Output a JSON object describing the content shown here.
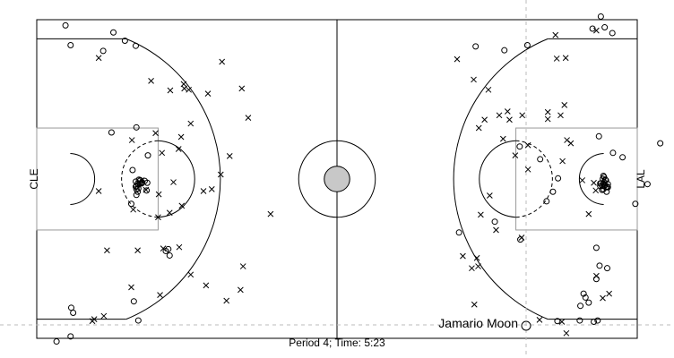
{
  "chart_data": {
    "type": "scatter",
    "subtitle": "Period 4; Time: 5:23",
    "teams": {
      "left": "CLE",
      "right": "LAL"
    },
    "highlight": {
      "player": "Jamario Moon"
    },
    "legend": {
      "made": "o",
      "missed": "x"
    },
    "series": [
      {
        "marker": "o",
        "points": [
          [
            4.5,
            49.1
          ],
          [
            10.4,
            45.1
          ],
          [
            15.5,
            45.9
          ],
          [
            13.8,
            46.7
          ],
          [
            12.0,
            48.0
          ],
          [
            5.3,
            46.0
          ],
          [
            11.7,
            32.3
          ],
          [
            17.4,
            28.7
          ],
          [
            15.6,
            22.5
          ],
          [
            15.5,
            23.8
          ],
          [
            15.8,
            24.3
          ],
          [
            16.0,
            24.9
          ],
          [
            15.8,
            23.0
          ],
          [
            16.4,
            24.3
          ],
          [
            16.2,
            24.8
          ],
          [
            15.5,
            24.6
          ],
          [
            15.6,
            23.9
          ],
          [
            16.1,
            24.3
          ],
          [
            16.9,
            24.7
          ],
          [
            16.2,
            24.8
          ],
          [
            15.0,
            26.4
          ],
          [
            16.5,
            24.5
          ],
          [
            17.2,
            23.2
          ],
          [
            15.9,
            23.5
          ],
          [
            14.8,
            21.1
          ],
          [
            16.4,
            24.4
          ],
          [
            15.6,
            23.4
          ],
          [
            17.3,
            24.4
          ],
          [
            15.9,
            24.1
          ],
          [
            20.6,
            14.0
          ],
          [
            20.8,
            13.0
          ],
          [
            20.2,
            13.7
          ],
          [
            15.6,
            33.1
          ],
          [
            15.9,
            2.8
          ],
          [
            15.2,
            5.8
          ],
          [
            5.4,
            4.8
          ],
          [
            5.3,
            0.3
          ],
          [
            3.1,
            -0.5
          ],
          [
            5.7,
            4.0
          ],
          [
            81.5,
            2.7
          ],
          [
            85.0,
            2.8
          ],
          [
            90.2,
            29.1
          ],
          [
            87.6,
            14.2
          ],
          [
            89.3,
            11.0
          ],
          [
            91.7,
            28.4
          ],
          [
            93.7,
            21.1
          ],
          [
            95.6,
            24.2
          ],
          [
            97.6,
            30.6
          ],
          [
            76.8,
            46.0
          ],
          [
            73.2,
            45.2
          ],
          [
            75.7,
            15.5
          ],
          [
            75.6,
            30.1
          ],
          [
            88.0,
            31.7
          ],
          [
            88.3,
            24.3
          ],
          [
            88.8,
            24.5
          ],
          [
            89.1,
            23.7
          ],
          [
            88.5,
            23.9
          ],
          [
            88.8,
            23.9
          ],
          [
            89.0,
            24.9
          ],
          [
            88.2,
            23.9
          ],
          [
            88.7,
            24.3
          ],
          [
            88.6,
            25.0
          ],
          [
            88.7,
            25.5
          ],
          [
            89.1,
            24.8
          ],
          [
            88.9,
            24.0
          ],
          [
            88.7,
            23.4
          ],
          [
            89.4,
            23.7
          ],
          [
            88.2,
            24.3
          ],
          [
            89.3,
            23.8
          ],
          [
            89.2,
            23.0
          ],
          [
            88.5,
            23.3
          ],
          [
            89.4,
            24.2
          ],
          [
            88.8,
            25.3
          ],
          [
            87.6,
            9.3
          ],
          [
            86.4,
            5.6
          ],
          [
            85.9,
            6.4
          ],
          [
            85.6,
            7.0
          ],
          [
            85.1,
            5.1
          ],
          [
            87.8,
            2.8
          ],
          [
            88.1,
            11.4
          ],
          [
            87.2,
            2.6
          ],
          [
            88.3,
            50.5
          ],
          [
            88.9,
            48.8
          ],
          [
            87.0,
            48.6
          ],
          [
            90.1,
            47.9
          ],
          [
            80.8,
            23.0
          ],
          [
            81.6,
            25.1
          ],
          [
            78.8,
            28.1
          ],
          [
            79.8,
            21.5
          ],
          [
            68.7,
            45.8
          ],
          [
            66.1,
            16.6
          ],
          [
            71.7,
            18.3
          ]
        ]
      },
      {
        "marker": "x",
        "points": [
          [
            9.7,
            44.0
          ],
          [
            17.9,
            40.4
          ],
          [
            20.9,
            38.9
          ],
          [
            23.1,
            39.2
          ],
          [
            23.8,
            39.0
          ],
          [
            29.0,
            43.4
          ],
          [
            23.0,
            39.9
          ],
          [
            26.8,
            38.4
          ],
          [
            32.1,
            39.2
          ],
          [
            30.2,
            28.6
          ],
          [
            33.1,
            34.6
          ],
          [
            36.6,
            19.5
          ],
          [
            15.1,
            20.2
          ],
          [
            19.6,
            29.1
          ],
          [
            22.6,
            31.6
          ],
          [
            24.1,
            33.7
          ],
          [
            22.2,
            29.7
          ],
          [
            18.6,
            32.2
          ],
          [
            14.9,
            31.1
          ],
          [
            21.4,
            24.5
          ],
          [
            16.4,
            24.8
          ],
          [
            19.0,
            19.0
          ],
          [
            17.1,
            23.3
          ],
          [
            19.1,
            22.6
          ],
          [
            22.7,
            20.8
          ],
          [
            26.1,
            23.1
          ],
          [
            28.8,
            25.7
          ],
          [
            27.4,
            23.4
          ],
          [
            22.3,
            14.3
          ],
          [
            20.8,
            19.7
          ],
          [
            11.0,
            13.8
          ],
          [
            15.8,
            13.8
          ],
          [
            19.8,
            14.1
          ],
          [
            19.3,
            6.8
          ],
          [
            24.1,
            10.0
          ],
          [
            26.5,
            8.3
          ],
          [
            29.7,
            5.9
          ],
          [
            31.9,
            7.6
          ],
          [
            32.3,
            11.3
          ],
          [
            14.8,
            8.0
          ],
          [
            9.7,
            23.1
          ],
          [
            10.5,
            3.5
          ],
          [
            9.0,
            3.0
          ],
          [
            8.7,
            2.7
          ],
          [
            81.2,
            47.6
          ],
          [
            87.6,
            48.3
          ],
          [
            82.8,
            44.0
          ],
          [
            81.4,
            43.9
          ],
          [
            82.6,
            36.6
          ],
          [
            80.0,
            34.4
          ],
          [
            82.0,
            35.0
          ],
          [
            83.6,
            30.6
          ],
          [
            83.0,
            31.1
          ],
          [
            87.2,
            24.4
          ],
          [
            85.4,
            24.8
          ],
          [
            87.5,
            23.2
          ],
          [
            86.4,
            19.5
          ],
          [
            80.0,
            35.5
          ],
          [
            82.3,
            27.8
          ],
          [
            76.0,
            35.0
          ],
          [
            70.7,
            39.0
          ],
          [
            72.4,
            35.0
          ],
          [
            73.7,
            35.6
          ],
          [
            74.0,
            34.3
          ],
          [
            69.2,
            33.0
          ],
          [
            70.9,
            22.4
          ],
          [
            69.5,
            19.4
          ],
          [
            71.9,
            17.0
          ],
          [
            68.9,
            12.6
          ],
          [
            69.1,
            11.3
          ],
          [
            68.1,
            11.0
          ],
          [
            66.7,
            12.9
          ],
          [
            65.8,
            43.8
          ],
          [
            68.4,
            40.6
          ],
          [
            75.9,
            15.8
          ],
          [
            70.1,
            34.3
          ],
          [
            73.0,
            31.3
          ],
          [
            76.9,
            30.3
          ],
          [
            74.9,
            28.7
          ],
          [
            76.9,
            26.5
          ],
          [
            89.6,
            7.0
          ],
          [
            88.6,
            6.3
          ],
          [
            87.6,
            9.8
          ],
          [
            68.5,
            5.3
          ],
          [
            82.2,
            2.6
          ],
          [
            78.7,
            2.9
          ],
          [
            82.9,
            0.8
          ]
        ]
      }
    ]
  }
}
